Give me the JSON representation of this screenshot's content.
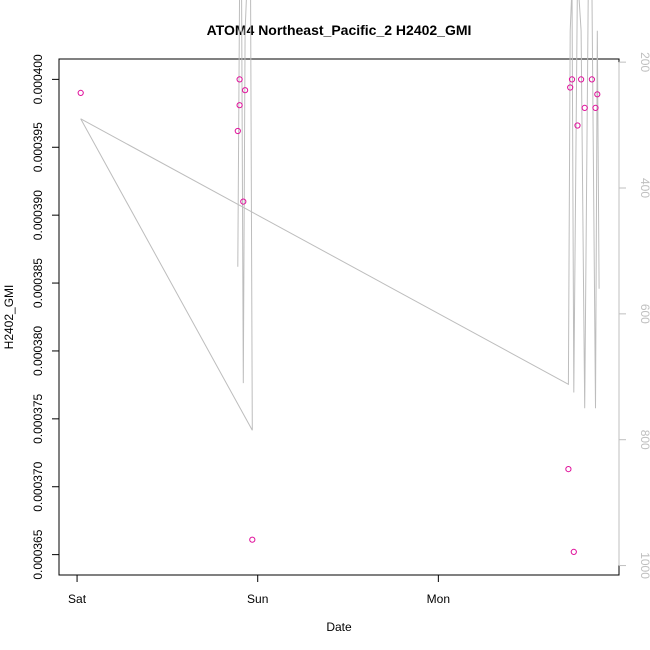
{
  "chart_data": {
    "type": "scatter",
    "title": "ATOM4 Northeast_Pacific_2 H2402_GMI",
    "xlabel": "Date",
    "ylabel": "H2402_GMI",
    "x_ticks": [
      {
        "label": "Sat",
        "value": 0.0
      },
      {
        "label": "Sun",
        "value": 1.0
      },
      {
        "label": "Mon",
        "value": 2.0
      }
    ],
    "xlim": [
      -0.1,
      3.0
    ],
    "y_ticks": [
      "0.000365",
      "0.000370",
      "0.000375",
      "0.000380",
      "0.000385",
      "0.000390",
      "0.000395",
      "0.000400"
    ],
    "ylim": [
      0.0003635,
      0.0004015
    ],
    "y2_ticks": [
      "200",
      "400",
      "600",
      "800",
      "1000"
    ],
    "y2lim": [
      1015,
      195
    ],
    "grid": false,
    "colors": {
      "points": "#e0119b",
      "line": "#bdbdbd",
      "axis": "#000000",
      "right_axis": "#bfbfbf"
    },
    "series": [
      {
        "kind": "points",
        "x": [
          0.02,
          0.89,
          0.9,
          0.9,
          0.92,
          0.93,
          0.97,
          2.72,
          2.73,
          2.74,
          2.75,
          2.77,
          2.79,
          2.81,
          2.85,
          2.87,
          2.88
        ],
        "y": [
          0.000399,
          0.0003962,
          0.0003981,
          0.0004,
          0.000391,
          0.0003992,
          0.0003661,
          0.0003713,
          0.0003994,
          0.0004,
          0.0003652,
          0.0003966,
          0.0004,
          0.0003979,
          0.0004,
          0.0003979,
          0.0003989
        ]
      },
      {
        "kind": "line",
        "x": [
          0.02,
          2.72,
          2.73,
          2.74,
          2.75,
          2.77,
          2.79,
          2.81,
          2.83,
          2.85,
          2.87,
          2.88,
          2.89
        ],
        "y2": [
          290,
          712,
          150,
          80,
          725,
          60,
          150,
          750,
          80,
          80,
          750,
          150,
          560
        ]
      },
      {
        "kind": "line",
        "x": [
          0.02,
          0.97,
          0.96,
          0.94,
          0.93,
          0.92,
          0.91,
          0.9,
          0.89
        ],
        "y2": [
          290,
          785,
          60,
          80,
          150,
          710,
          60,
          80,
          525
        ]
      }
    ]
  }
}
